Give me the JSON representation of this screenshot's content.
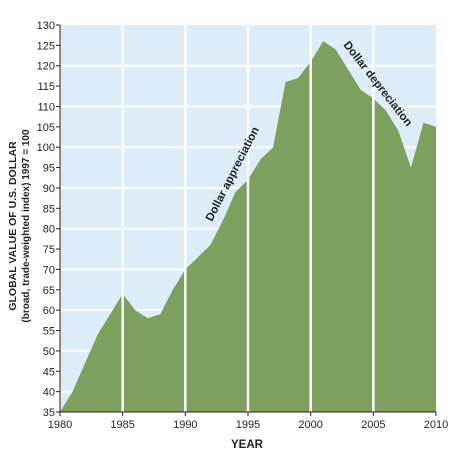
{
  "chart_data": {
    "type": "area",
    "title": "",
    "xlabel": "YEAR",
    "ylabel": "GLOBAL VALUE OF U.S. DOLLAR",
    "ylabel_sub": "(broad, trade-weighted index) 1997 = 100",
    "xlim": [
      1980,
      2010
    ],
    "ylim": [
      35,
      130
    ],
    "x_ticks": [
      1980,
      1985,
      1990,
      1995,
      2000,
      2005,
      2010
    ],
    "y_ticks": [
      35,
      40,
      45,
      50,
      55,
      60,
      65,
      70,
      75,
      80,
      85,
      90,
      95,
      100,
      105,
      110,
      115,
      120,
      125,
      130
    ],
    "grid": true,
    "annotations": [
      "Dollar appreciation",
      "Dollar depreciation"
    ],
    "colors": {
      "area": "#7da05f",
      "plot_background": "#dcecf8",
      "grid": "#ffffff"
    },
    "x": [
      1980,
      1981,
      1982,
      1983,
      1984,
      1985,
      1986,
      1987,
      1988,
      1989,
      1990,
      1991,
      1992,
      1993,
      1994,
      1995,
      1996,
      1997,
      1998,
      1999,
      2000,
      2001,
      2002,
      2003,
      2004,
      2005,
      2006,
      2007,
      2008,
      2009,
      2010
    ],
    "values": [
      35,
      40,
      47,
      54,
      59,
      64,
      60,
      58,
      59,
      65,
      70,
      73,
      76,
      82,
      89,
      92,
      97,
      100,
      116,
      117,
      121,
      126,
      124,
      119,
      114,
      112,
      109,
      104,
      95,
      106,
      105
    ]
  }
}
